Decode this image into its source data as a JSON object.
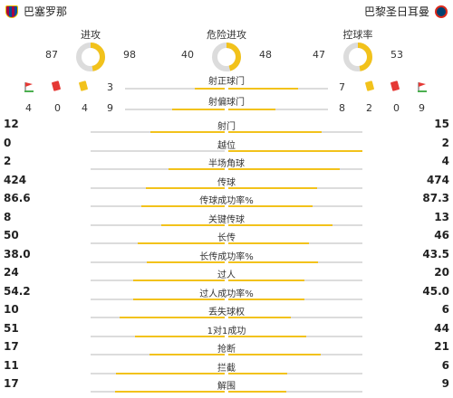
{
  "teams": {
    "home": {
      "name": "巴塞罗那"
    },
    "away": {
      "name": "巴黎圣日耳曼"
    }
  },
  "gauges": [
    {
      "title": "进攻",
      "home": 87,
      "away": 98
    },
    {
      "title": "危险进攻",
      "home": 40,
      "away": 48
    },
    {
      "title": "控球率",
      "home": 47,
      "away": 53
    }
  ],
  "shots_on": {
    "label": "射正球门",
    "home": 3,
    "away": 7
  },
  "shots_off": {
    "label": "射偏球门",
    "home_counts": [
      "4",
      "0",
      "4",
      "9"
    ],
    "away_counts": [
      "8",
      "2",
      "0",
      "9"
    ]
  },
  "stats": [
    {
      "label": "射门",
      "home": "12",
      "away": "15"
    },
    {
      "label": "越位",
      "home": "0",
      "away": "2"
    },
    {
      "label": "半场角球",
      "home": "2",
      "away": "4"
    },
    {
      "label": "传球",
      "home": "424",
      "away": "474"
    },
    {
      "label": "传球成功率%",
      "home": "86.6",
      "away": "87.3"
    },
    {
      "label": "关键传球",
      "home": "8",
      "away": "13"
    },
    {
      "label": "长传",
      "home": "50",
      "away": "46"
    },
    {
      "label": "长传成功率%",
      "home": "38.0",
      "away": "43.5"
    },
    {
      "label": "过人",
      "home": "24",
      "away": "20"
    },
    {
      "label": "过人成功率%",
      "home": "54.2",
      "away": "45.0"
    },
    {
      "label": "丢失球权",
      "home": "10",
      "away": "6"
    },
    {
      "label": "1对1成功",
      "home": "51",
      "away": "44"
    },
    {
      "label": "抢断",
      "home": "17",
      "away": "21"
    },
    {
      "label": "拦截",
      "home": "11",
      "away": "6"
    },
    {
      "label": "解围",
      "home": "17",
      "away": "9"
    }
  ],
  "colors": {
    "accent": "#f2c21b",
    "track": "#dcdcdc",
    "red_card": "#e53935"
  }
}
